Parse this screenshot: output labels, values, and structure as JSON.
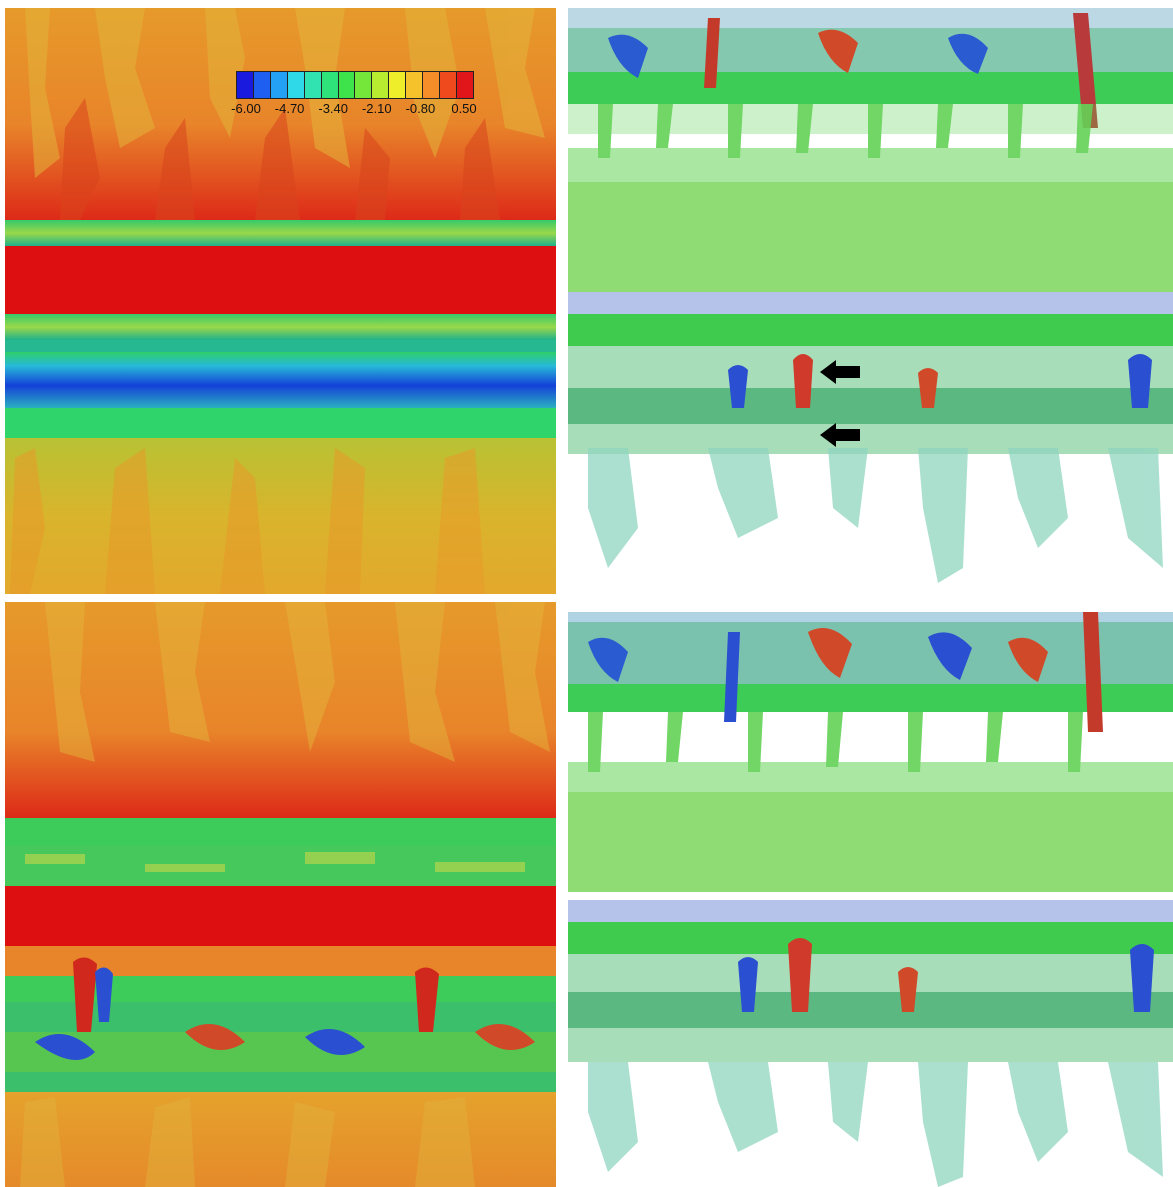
{
  "colorbar": {
    "ticks": [
      "-6.00",
      "-4.70",
      "-3.40",
      "-2.10",
      "-0.80",
      "0.50"
    ],
    "colors": [
      "#1a1adf",
      "#1e5ef0",
      "#24a0f5",
      "#2fd9e8",
      "#30e3b0",
      "#2ee37a",
      "#3ee24a",
      "#75e63a",
      "#b8ec30",
      "#eeee2a",
      "#f5c22c",
      "#f58e28",
      "#ee4a1e",
      "#e0161a"
    ]
  },
  "arrows": [
    "left-arrow-upper",
    "left-arrow-lower"
  ]
}
